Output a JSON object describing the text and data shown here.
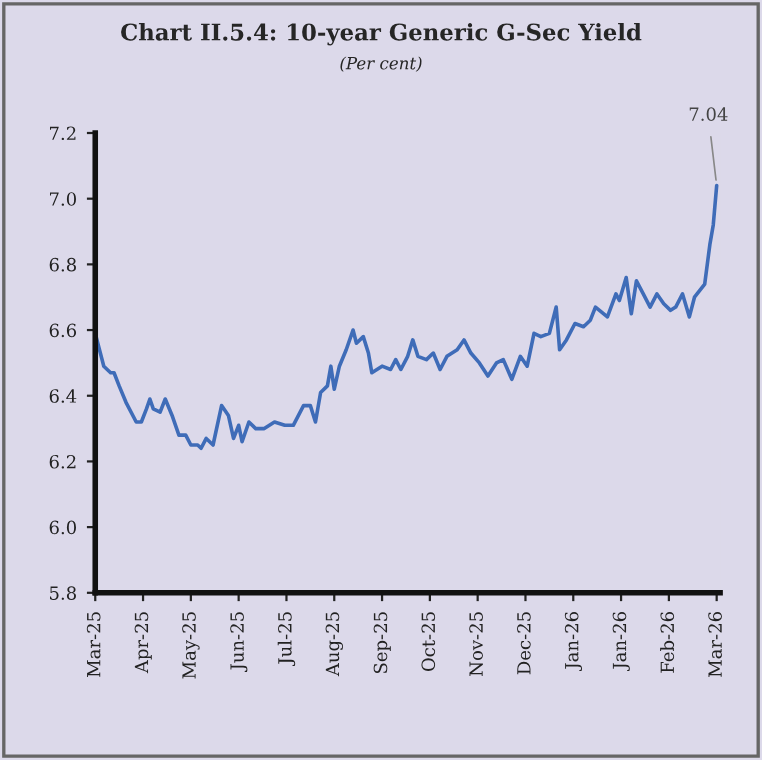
{
  "chart_data": {
    "type": "line",
    "title": "Chart II.5.4: 10-year Generic G-Sec Yield",
    "subtitle": "(Per cent)",
    "x": [
      "2025-03-27",
      "2025-04-01",
      "2025-04-03",
      "2025-04-05",
      "2025-04-07",
      "2025-04-10",
      "2025-04-14",
      "2025-04-20",
      "2025-04-23",
      "2025-04-26",
      "2025-04-28",
      "2025-04-30",
      "2025-05-04",
      "2025-05-07",
      "2025-05-11",
      "2025-05-15",
      "2025-05-19",
      "2025-05-22",
      "2025-05-26",
      "2025-05-28",
      "2025-05-31",
      "2025-06-04",
      "2025-06-09",
      "2025-06-13",
      "2025-06-16",
      "2025-06-19",
      "2025-06-21",
      "2025-06-25",
      "2025-06-29",
      "2025-07-04",
      "2025-07-10",
      "2025-07-16",
      "2025-07-21",
      "2025-07-27",
      "2025-07-31",
      "2025-08-03",
      "2025-08-06",
      "2025-08-10",
      "2025-08-12",
      "2025-08-14",
      "2025-08-17",
      "2025-08-21",
      "2025-08-25",
      "2025-08-27",
      "2025-08-31",
      "2025-09-03",
      "2025-09-05",
      "2025-09-11",
      "2025-09-16",
      "2025-09-19",
      "2025-09-22",
      "2025-09-26",
      "2025-09-29",
      "2025-10-02",
      "2025-10-07",
      "2025-10-11",
      "2025-10-15",
      "2025-10-19",
      "2025-10-25",
      "2025-10-29",
      "2025-11-02",
      "2025-11-07",
      "2025-11-12",
      "2025-11-17",
      "2025-11-21",
      "2025-11-26",
      "2025-12-01",
      "2025-12-05",
      "2025-12-09",
      "2025-12-13",
      "2025-12-18",
      "2025-12-22",
      "2025-12-24",
      "2025-12-28",
      "2026-01-02",
      "2026-01-07",
      "2026-01-11",
      "2026-01-14",
      "2026-01-21",
      "2026-01-26",
      "2026-01-28",
      "2026-02-01",
      "2026-02-04",
      "2026-02-07",
      "2026-02-11",
      "2026-02-15",
      "2026-02-19",
      "2026-02-23",
      "2026-02-27",
      "2026-03-02",
      "2026-03-06",
      "2026-03-10",
      "2026-03-13",
      "2026-03-19",
      "2026-03-22",
      "2026-03-24",
      "2026-03-26"
    ],
    "series": [
      {
        "color": "#3f6cb8",
        "values": [
          6.59,
          6.49,
          6.48,
          6.47,
          6.47,
          6.43,
          6.38,
          6.32,
          6.32,
          6.36,
          6.39,
          6.36,
          6.35,
          6.39,
          6.34,
          6.28,
          6.28,
          6.25,
          6.25,
          6.24,
          6.27,
          6.25,
          6.37,
          6.34,
          6.27,
          6.31,
          6.26,
          6.32,
          6.3,
          6.3,
          6.32,
          6.31,
          6.31,
          6.37,
          6.37,
          6.32,
          6.41,
          6.43,
          6.49,
          6.42,
          6.49,
          6.54,
          6.6,
          6.56,
          6.58,
          6.53,
          6.47,
          6.49,
          6.48,
          6.51,
          6.48,
          6.52,
          6.57,
          6.52,
          6.51,
          6.53,
          6.48,
          6.52,
          6.54,
          6.57,
          6.53,
          6.5,
          6.46,
          6.5,
          6.51,
          6.45,
          6.52,
          6.49,
          6.59,
          6.58,
          6.59,
          6.67,
          6.54,
          6.57,
          6.62,
          6.61,
          6.63,
          6.67,
          6.64,
          6.71,
          6.69,
          6.76,
          6.65,
          6.75,
          6.71,
          6.67,
          6.71,
          6.68,
          6.66,
          6.67,
          6.71,
          6.64,
          6.7,
          6.74,
          6.86,
          6.92,
          7.04
        ]
      }
    ],
    "xlim": [
      "2025-03-27",
      "2026-03-28"
    ],
    "xticks": [
      {
        "value": "2025-03-27",
        "label": "Mar-25"
      },
      {
        "value": "2025-04-24",
        "label": "Apr-25"
      },
      {
        "value": "2025-05-22",
        "label": "May-25"
      },
      {
        "value": "2025-06-19",
        "label": "Jun-25"
      },
      {
        "value": "2025-07-17",
        "label": "Jul-25"
      },
      {
        "value": "2025-08-14",
        "label": "Aug-25"
      },
      {
        "value": "2025-09-11",
        "label": "Sep-25"
      },
      {
        "value": "2025-10-09",
        "label": "Oct-25"
      },
      {
        "value": "2025-11-06",
        "label": "Nov-25"
      },
      {
        "value": "2025-12-04",
        "label": "Dec-25"
      },
      {
        "value": "2026-01-01",
        "label": "Jan-26"
      },
      {
        "value": "2026-01-29",
        "label": "Jan-26"
      },
      {
        "value": "2026-02-26",
        "label": "Feb-26"
      },
      {
        "value": "2026-03-26",
        "label": "Mar-26"
      }
    ],
    "ylim": [
      5.8,
      7.2
    ],
    "yticks": [
      {
        "value": 5.8,
        "label": "5.8"
      },
      {
        "value": 6.0,
        "label": "6.0"
      },
      {
        "value": 6.2,
        "label": "6.2"
      },
      {
        "value": 6.4,
        "label": "6.4"
      },
      {
        "value": 6.6,
        "label": "6.6"
      },
      {
        "value": 6.8,
        "label": "6.8"
      },
      {
        "value": 7.0,
        "label": "7.0"
      },
      {
        "value": 7.2,
        "label": "7.2"
      }
    ],
    "annotations": [
      {
        "text": "7.04",
        "x": "2026-03-26",
        "y": 7.04
      }
    ],
    "grid": false,
    "legend": false,
    "marker": "none",
    "line_style": "solid"
  }
}
